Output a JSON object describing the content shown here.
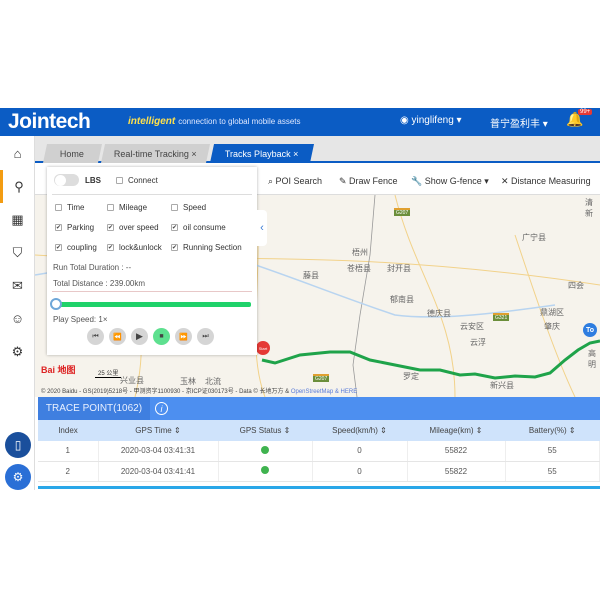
{
  "header": {
    "logo": "Jointech",
    "slogan_brand": "intelligent",
    "slogan": "connection to global mobile assets",
    "user": "yinglifeng ▾",
    "company": "普宁盈利丰 ▾",
    "notifications": "99+",
    "color": "#0b5cc4"
  },
  "tabs": [
    {
      "label": "Home"
    },
    {
      "label": "Real-time Tracking ×"
    },
    {
      "label": "Tracks Playback ×",
      "active": true
    }
  ],
  "toolbar": {
    "poi": "POI Search",
    "fence": "Draw Fence",
    "gfence": "Show G-fence ▾",
    "distance": "Distance Measuring"
  },
  "panel": {
    "lbs": "LBS",
    "connect": "Connect",
    "options": [
      {
        "label": "Time",
        "checked": false
      },
      {
        "label": "Mileage",
        "checked": false
      },
      {
        "label": "Speed",
        "checked": false
      },
      {
        "label": "Parking",
        "checked": true
      },
      {
        "label": "over speed",
        "checked": true
      },
      {
        "label": "oil consume",
        "checked": true
      },
      {
        "label": "coupling",
        "checked": true
      },
      {
        "label": "lock&unlock",
        "checked": true
      },
      {
        "label": "Running Section",
        "checked": true
      }
    ],
    "duration": "Run Total Duration : --",
    "distance": "Total Distance : 239.00km",
    "progress": 0,
    "play_speed": "Play Speed:  1×"
  },
  "map": {
    "places": [
      "梧州",
      "苍梧县",
      "封开县",
      "藤县",
      "郁南县",
      "德庆县",
      "云安区",
      "云浮",
      "广宁县",
      "四会",
      "鼎湖区",
      "肇庆",
      "新兴县",
      "罗定",
      "兴业县",
      "玉林",
      "北流",
      "高明",
      "清新"
    ],
    "highways": [
      "G207",
      "G321",
      "G207"
    ],
    "start": "Start",
    "end": "To",
    "scale": "25 公里",
    "baidu": "Bai 地图",
    "copyright": "© 2020 Baidu - GS(2019)5218号 - 甲测资字1100930 - 京ICP证030173号 - Data © 长地万方 & ",
    "osm": "OpenStreetMap",
    "here": " & HERE",
    "route_color": "#1fa34a"
  },
  "trace": {
    "title": "TRACE POINT(1062)",
    "columns": [
      "Index",
      "GPS Time ⇕",
      "GPS Status ⇕",
      "Speed(km/h) ⇕",
      "Mileage(km) ⇕",
      "Battery(%) ⇕"
    ],
    "rows": [
      {
        "index": "1",
        "time": "2020-03-04 03:41:31",
        "speed": "0",
        "mileage": "55822",
        "battery": "55"
      },
      {
        "index": "2",
        "time": "2020-03-04 03:41:41",
        "speed": "0",
        "mileage": "55822",
        "battery": "55"
      }
    ]
  }
}
